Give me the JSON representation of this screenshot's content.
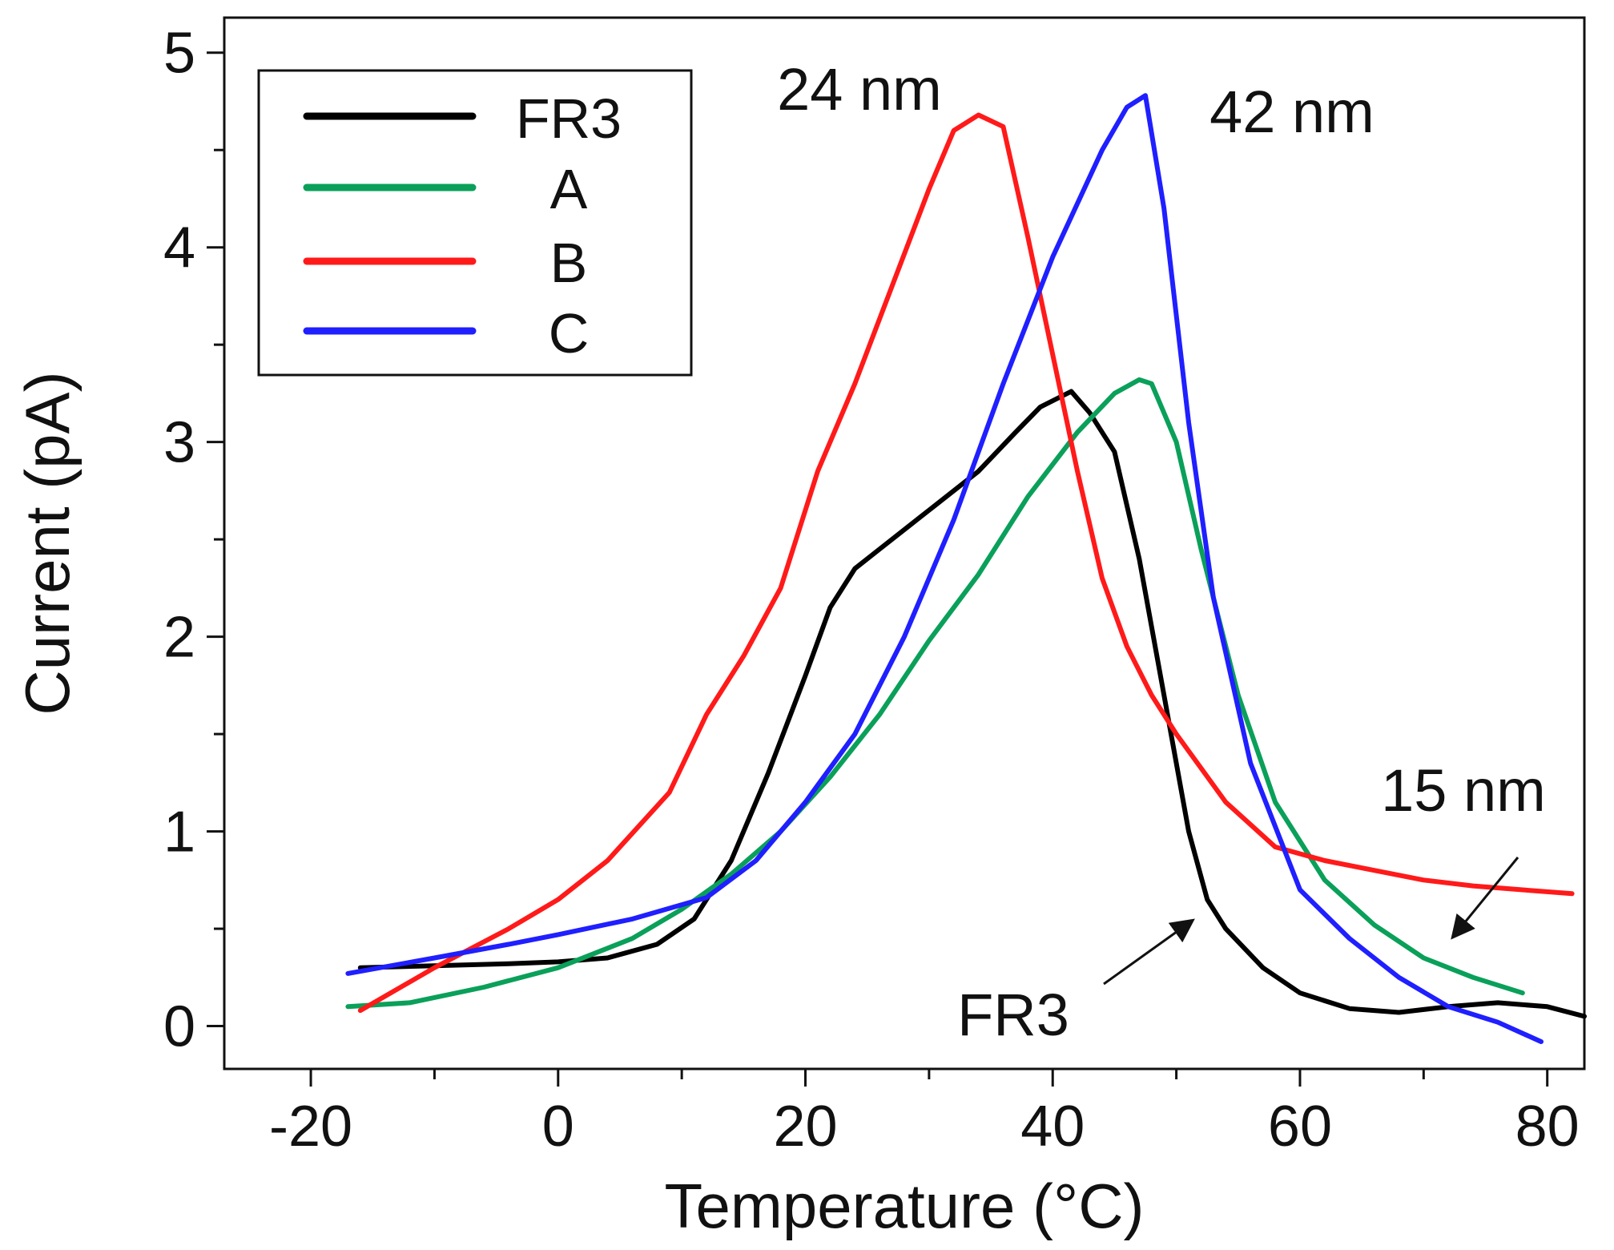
{
  "chart_data": {
    "type": "line",
    "title": "",
    "xlabel": "Temperature (°C)",
    "ylabel": "Current (pA)",
    "xlim": [
      -27,
      83
    ],
    "ylim": [
      -0.22,
      5.18
    ],
    "xticks": [
      -20,
      0,
      20,
      40,
      60,
      80
    ],
    "xtick_labels": [
      "-20",
      "0",
      "20",
      "40",
      "60",
      "80"
    ],
    "yticks": [
      0,
      1,
      2,
      3,
      4,
      5
    ],
    "ytick_labels": [
      "0",
      "1",
      "2",
      "3",
      "4",
      "5"
    ],
    "grid": false,
    "legend_position": "top-left",
    "series": [
      {
        "name": "FR3",
        "color": "#000000",
        "x": [
          -16,
          -10,
          -4,
          0,
          4,
          8,
          11,
          14,
          17,
          20,
          22,
          24,
          26,
          30,
          34,
          37,
          39,
          41.5,
          43,
          45,
          47,
          49,
          51,
          52.5,
          54,
          57,
          60,
          64,
          68,
          72,
          76,
          80,
          83
        ],
        "y": [
          0.3,
          0.31,
          0.32,
          0.33,
          0.35,
          0.42,
          0.55,
          0.85,
          1.3,
          1.8,
          2.15,
          2.35,
          2.45,
          2.65,
          2.85,
          3.05,
          3.18,
          3.26,
          3.15,
          2.95,
          2.4,
          1.7,
          1.0,
          0.65,
          0.5,
          0.3,
          0.17,
          0.09,
          0.07,
          0.1,
          0.12,
          0.1,
          0.05
        ]
      },
      {
        "name": "A",
        "color": "#0aa05a",
        "x": [
          -17,
          -12,
          -6,
          0,
          6,
          10,
          14,
          18,
          22,
          26,
          30,
          34,
          38,
          42,
          45,
          47,
          48,
          50,
          52,
          55,
          58,
          62,
          66,
          70,
          74,
          78
        ],
        "y": [
          0.1,
          0.12,
          0.2,
          0.3,
          0.45,
          0.6,
          0.78,
          1.0,
          1.28,
          1.6,
          1.98,
          2.32,
          2.72,
          3.05,
          3.25,
          3.32,
          3.3,
          3.0,
          2.45,
          1.7,
          1.15,
          0.75,
          0.52,
          0.35,
          0.25,
          0.17
        ]
      },
      {
        "name": "B",
        "color": "#ff1a1a",
        "x": [
          -16,
          -10,
          -4,
          0,
          4,
          9,
          12,
          15,
          18,
          21,
          24,
          27,
          30,
          32,
          34,
          36,
          38,
          40,
          42,
          44,
          46,
          48,
          50,
          54,
          58,
          62,
          66,
          70,
          74,
          78,
          82
        ],
        "y": [
          0.08,
          0.3,
          0.5,
          0.65,
          0.85,
          1.2,
          1.6,
          1.9,
          2.25,
          2.85,
          3.3,
          3.8,
          4.3,
          4.6,
          4.68,
          4.62,
          4.05,
          3.45,
          2.85,
          2.3,
          1.95,
          1.7,
          1.5,
          1.15,
          0.92,
          0.85,
          0.8,
          0.75,
          0.72,
          0.7,
          0.68
        ]
      },
      {
        "name": "C",
        "color": "#1f1fff",
        "x": [
          -17,
          -10,
          -4,
          0,
          6,
          12,
          16,
          20,
          24,
          28,
          32,
          36,
          40,
          44,
          46,
          47.5,
          49,
          51,
          53,
          56,
          60,
          64,
          68,
          72,
          76,
          79.5
        ],
        "y": [
          0.27,
          0.35,
          0.42,
          0.47,
          0.55,
          0.66,
          0.85,
          1.15,
          1.5,
          2.0,
          2.6,
          3.3,
          3.95,
          4.5,
          4.72,
          4.78,
          4.2,
          3.1,
          2.2,
          1.35,
          0.7,
          0.45,
          0.25,
          0.1,
          0.02,
          -0.08
        ]
      }
    ],
    "annotations": [
      {
        "text": "24 nm"
      },
      {
        "text": "42 nm"
      },
      {
        "text": "15 nm"
      },
      {
        "text": "FR3"
      }
    ]
  }
}
